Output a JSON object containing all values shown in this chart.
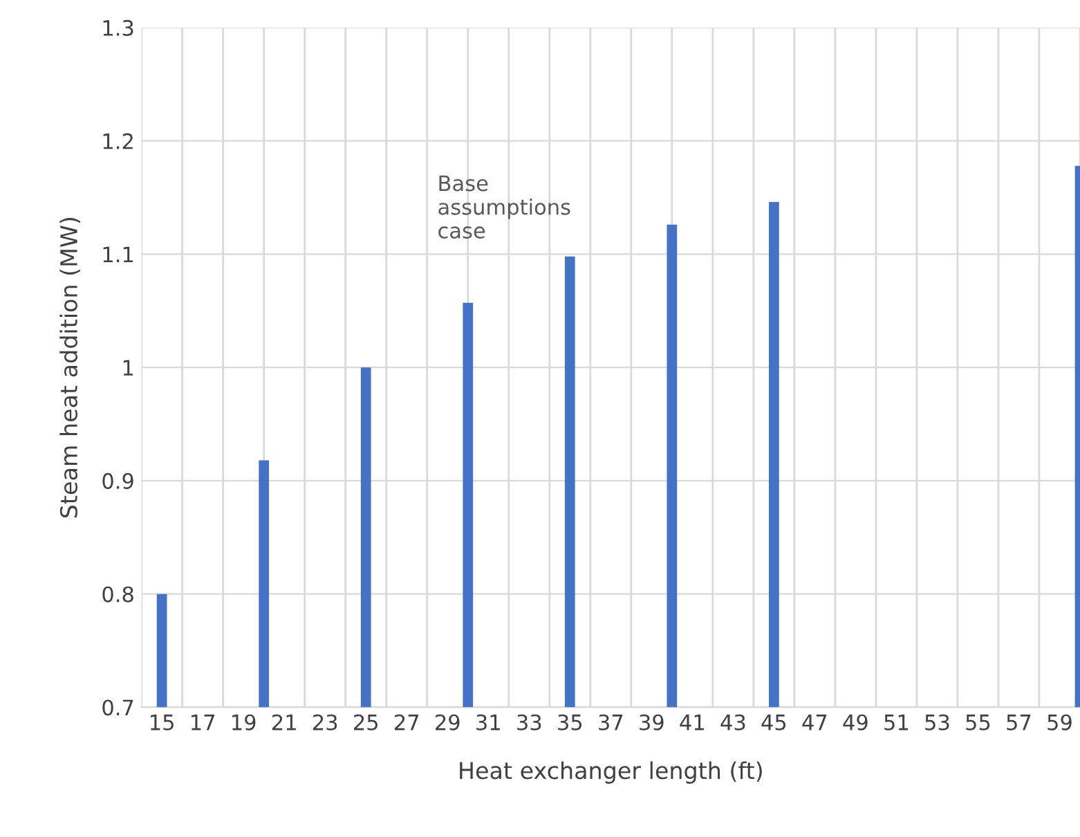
{
  "chart_data": {
    "type": "bar",
    "xlabel": "Heat exchanger length (ft)",
    "ylabel": "Steam heat addition (MW)",
    "categories": [
      "15",
      null,
      "17",
      null,
      "19",
      null,
      "21",
      null,
      "23",
      null,
      "25",
      null,
      "27",
      null,
      "29",
      null,
      "31",
      null,
      "33",
      null,
      "35",
      null,
      "37",
      null,
      "39",
      null,
      "41",
      null,
      "43",
      null,
      "45",
      null,
      "47",
      null,
      "49",
      null,
      "51",
      null,
      "53",
      null,
      "55",
      null,
      "57",
      null,
      "59",
      null
    ],
    "values": [
      0.8,
      null,
      null,
      null,
      null,
      0.918,
      null,
      null,
      null,
      null,
      1.0,
      null,
      null,
      null,
      null,
      1.057,
      null,
      null,
      null,
      null,
      1.098,
      null,
      null,
      null,
      null,
      1.126,
      null,
      null,
      null,
      null,
      1.146,
      null,
      null,
      null,
      null,
      null,
      null,
      null,
      null,
      null,
      null,
      null,
      null,
      null,
      null,
      1.178
    ],
    "color": "#4472c4",
    "ylim": [
      0.7,
      1.3
    ],
    "yticks": [
      0.7,
      0.8,
      0.9,
      1,
      1.1,
      1.2,
      1.3
    ],
    "grid": true,
    "annotations": [
      "Base\nassumptions\ncase"
    ]
  }
}
